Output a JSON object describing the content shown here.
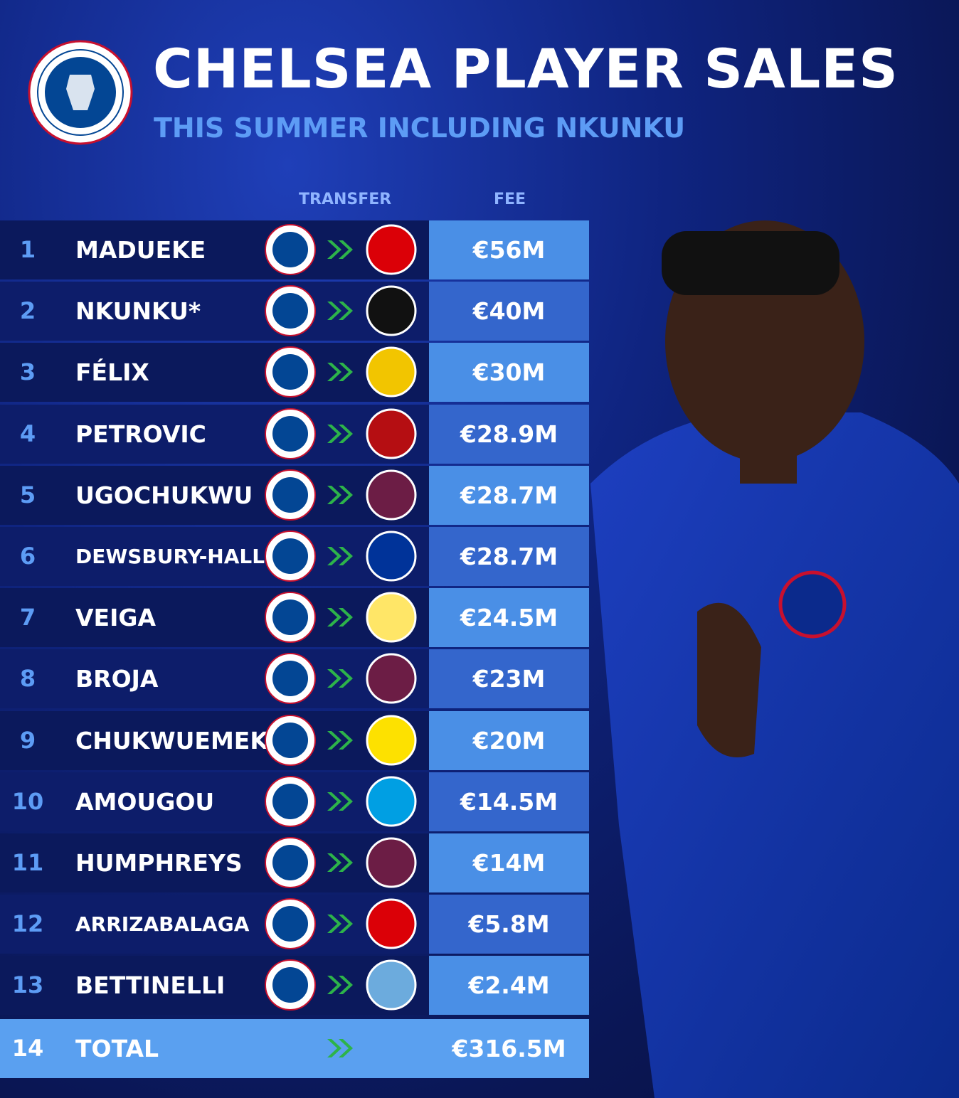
{
  "header": {
    "title": "CHELSEA PLAYER SALES",
    "subtitle": "THIS SUMMER INCLUDING NKUNKU"
  },
  "table": {
    "columns": [
      "TRANSFER",
      "FEE"
    ],
    "rows": [
      [
        1,
        "MADUEKE",
        "€56M"
      ],
      [
        2,
        "NKUNKU*",
        "€40M"
      ],
      [
        3,
        "FÉLIX",
        "€30M"
      ],
      [
        4,
        "PETROVIC",
        "€28.9M"
      ],
      [
        5,
        "UGOCHUKWU",
        "€28.7M"
      ],
      [
        6,
        "DEWSBURY-HALL",
        "€28.7M"
      ],
      [
        7,
        "VEIGA",
        "€24.5M"
      ],
      [
        8,
        "BROJA",
        "€23M"
      ],
      [
        9,
        "CHUKWUEMEKA",
        "€20M"
      ],
      [
        10,
        "AMOUGOU",
        "€14.5M"
      ],
      [
        11,
        "HUMPHREYS",
        "€14M"
      ],
      [
        12,
        "ARRIZABALAGA",
        "€5.8M"
      ],
      [
        13,
        "BETTINELLI",
        "€2.4M"
      ]
    ],
    "total": [
      14,
      "TOTAL",
      "€316.5M"
    ]
  }
}
